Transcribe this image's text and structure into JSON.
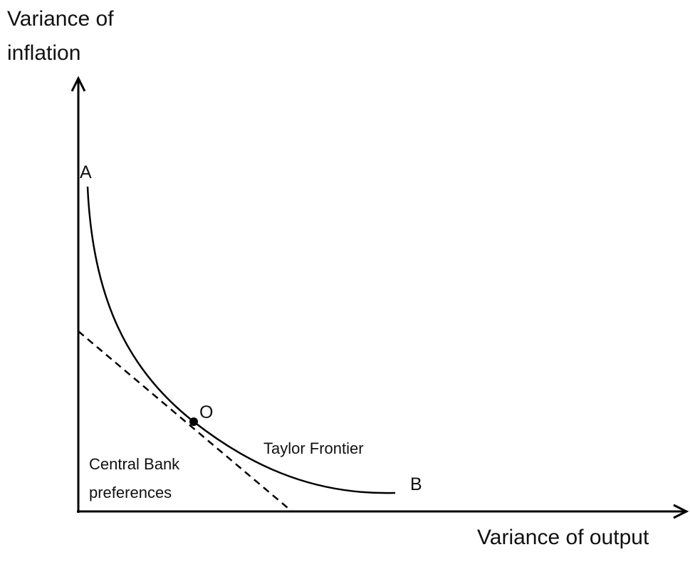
{
  "axes": {
    "y_label": [
      "Variance of",
      "inflation"
    ],
    "x_label": "Variance of output"
  },
  "points": {
    "a": "A",
    "o": "O",
    "b": "B"
  },
  "curves": {
    "frontier": "Taylor Frontier",
    "preferences": [
      "Central Bank",
      "preferences"
    ]
  }
}
